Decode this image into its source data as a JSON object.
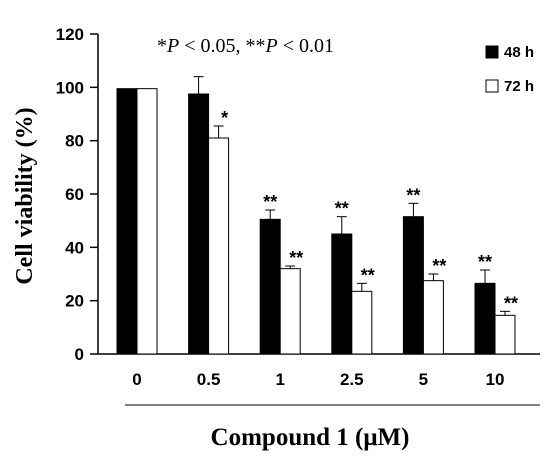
{
  "chart_data": {
    "type": "bar",
    "xlabel_prefix": "Compound 1 (",
    "xlabel_unit": "μM",
    "xlabel_suffix": ")",
    "ylabel": "Cell viability (%)",
    "ylim": [
      0,
      120
    ],
    "yticks": [
      "0",
      "20",
      "40",
      "60",
      "80",
      "100",
      "120"
    ],
    "categories": [
      "0",
      "0.5",
      "1",
      "2.5",
      "5",
      "10"
    ],
    "series": [
      {
        "name": "48 h",
        "color": "#000000",
        "values": [
          99.5,
          97.5,
          50.5,
          45.0,
          51.5,
          26.5
        ],
        "errors": [
          0,
          6.5,
          3.5,
          6.5,
          5.0,
          5.0
        ],
        "significance": [
          "",
          "",
          "**",
          "**",
          "**",
          "**"
        ]
      },
      {
        "name": "72 h",
        "color": "#ffffff",
        "values": [
          99.5,
          81.0,
          32.0,
          23.5,
          27.5,
          14.5
        ],
        "errors": [
          0,
          4.5,
          1.0,
          3.0,
          2.5,
          1.5
        ],
        "significance": [
          "",
          "*",
          "**",
          "**",
          "**",
          "**"
        ]
      }
    ],
    "annotation": {
      "part1_star": "*",
      "part1_p": "P",
      "part1_rest": " < 0.05, ",
      "part2_star": "**",
      "part2_p": "P",
      "part2_rest": " < 0.01"
    },
    "legend_position": "top-right",
    "grid": false
  }
}
